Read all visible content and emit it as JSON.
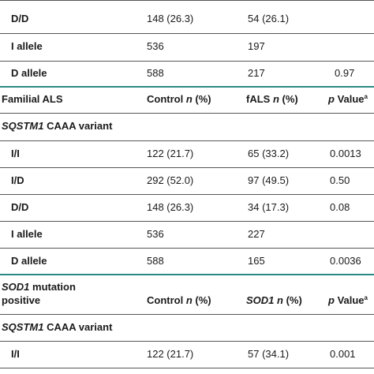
{
  "rows": [
    {
      "id": "r1",
      "label": "D/D",
      "control": "148 (26.3)",
      "case": "54 (26.1)",
      "p": ""
    },
    {
      "id": "r2",
      "label": "I allele",
      "control": "536",
      "case": "197",
      "p": ""
    },
    {
      "id": "r3",
      "label": "D allele",
      "control": "588",
      "case": "217",
      "p": "0.97"
    }
  ],
  "fals_header": {
    "group": "Familial ALS",
    "control_pre": "Control ",
    "control_n": "n",
    "control_post": " (%)",
    "case_pre": "fALS ",
    "case_n": "n",
    "case_post": " (%)",
    "p_pre": "p",
    "p_post": " Value",
    "p_sup": "a"
  },
  "fals_variant": {
    "gene": "SQSTM1",
    "rest": " CAAA variant"
  },
  "fals_rows": [
    {
      "label": "I/I",
      "control": "122 (21.7)",
      "case": "65 (33.2)",
      "p": "0.0013"
    },
    {
      "label": "I/D",
      "control": "292 (52.0)",
      "case": "97 (49.5)",
      "p": "0.50"
    },
    {
      "label": "D/D",
      "control": "148 (26.3)",
      "case": "34 (17.3)",
      "p": "0.08"
    },
    {
      "label": "I allele",
      "control": "536",
      "case": "227",
      "p": ""
    },
    {
      "label": "D allele",
      "control": "588",
      "case": "165",
      "p": "0.0036"
    }
  ],
  "sod_header": {
    "gene": "SOD1",
    "line1_rest": " mutation",
    "line2": "positive",
    "control_pre": "Control ",
    "control_n": "n",
    "control_post": " (%)",
    "case_gene": "SOD1",
    "case_n": "n",
    "case_post": " (%)",
    "p_pre": "p",
    "p_post": " Value",
    "p_sup": "a"
  },
  "sod_variant": {
    "gene": "SQSTM1",
    "rest": " CAAA variant"
  },
  "sod_rows": [
    {
      "label": "I/I",
      "control": "122 (21.7)",
      "case": "57 (34.1)",
      "p": "0.001"
    }
  ]
}
